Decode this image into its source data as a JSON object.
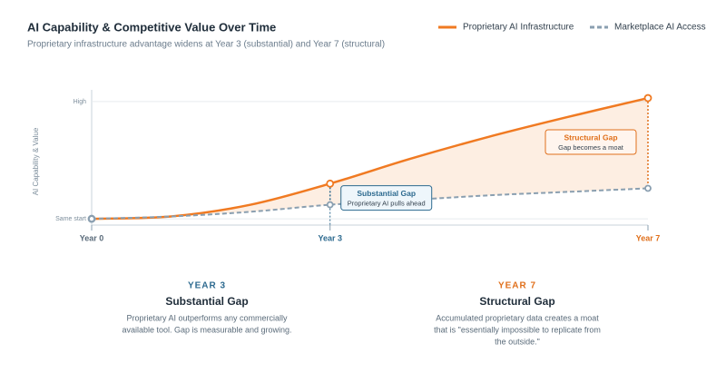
{
  "chart_data": {
    "type": "line",
    "title": "AI Capability & Competitive Value Over Time",
    "subtitle": "Proprietary infrastructure advantage widens at Year 3 (substantial) and Year 7 (structural)",
    "y_label": "AI Capability & Value",
    "x": [
      0,
      1,
      2,
      3,
      4,
      5,
      6,
      7
    ],
    "xlim": [
      0,
      7
    ],
    "xticks": [
      {
        "value": 0,
        "label": "Year 0"
      },
      {
        "value": 3,
        "label": "Year 3"
      },
      {
        "value": 7,
        "label": "Year 7"
      }
    ],
    "ylim": [
      -10,
      110
    ],
    "yticks": [
      {
        "value": 0,
        "label": "Same start"
      },
      {
        "value": 100,
        "label": "High"
      }
    ],
    "series": [
      {
        "name": "Proprietary AI Infrastructure",
        "color": "#f07a22",
        "values": [
          0,
          2,
          12,
          30,
          51,
          70,
          87,
          103
        ]
      },
      {
        "name": "Marketplace AI Access",
        "color": "#8a9fb0",
        "values": [
          0,
          2,
          6,
          12,
          16,
          20,
          23,
          26
        ]
      }
    ],
    "annotations": [
      {
        "x": 3,
        "title": "Substantial Gap",
        "text": "Proprietary AI pulls ahead",
        "color": "#2d6a8f"
      },
      {
        "x": 7,
        "title": "Structural Gap",
        "text": "Gap becomes a moat",
        "color": "#e0701c"
      }
    ],
    "panels": [
      {
        "kicker": "YEAR 3",
        "title": "Substantial Gap",
        "color": "#2d6a8f",
        "lines": [
          "Proprietary AI outperforms any commercially",
          "available tool. Gap is measurable and growing."
        ]
      },
      {
        "kicker": "YEAR 7",
        "title": "Structural Gap",
        "color": "#e0701c",
        "lines": [
          "Accumulated proprietary data creates a moat",
          "that is \"essentially impossible to replicate from",
          "the outside.\""
        ]
      }
    ]
  }
}
